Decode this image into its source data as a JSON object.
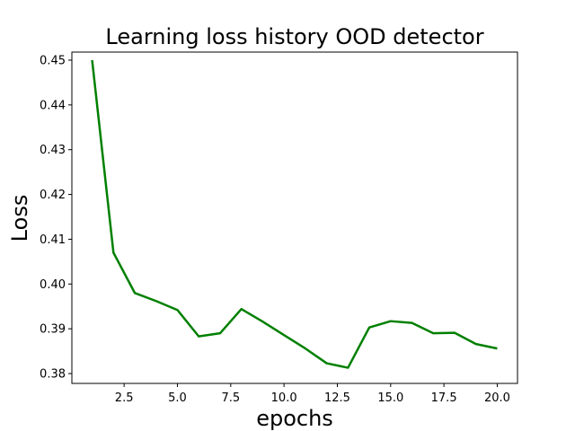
{
  "chart_data": {
    "type": "line",
    "title": "Learning loss history OOD detector",
    "xlabel": "epochs",
    "ylabel": "Loss",
    "xlim": [
      0.05,
      20.95
    ],
    "ylim": [
      0.3778,
      0.4518
    ],
    "grid": false,
    "x_ticks": [
      2.5,
      5.0,
      7.5,
      10.0,
      12.5,
      15.0,
      17.5,
      20.0
    ],
    "x_tick_labels": [
      "2.5",
      "5.0",
      "7.5",
      "10.0",
      "12.5",
      "15.0",
      "17.5",
      "20.0"
    ],
    "y_ticks": [
      0.38,
      0.39,
      0.4,
      0.41,
      0.42,
      0.43,
      0.44,
      0.45
    ],
    "y_tick_labels": [
      "0.38",
      "0.39",
      "0.40",
      "0.41",
      "0.42",
      "0.43",
      "0.44",
      "0.45"
    ],
    "series": [
      {
        "color": "#008000",
        "x": [
          1,
          2,
          3,
          4,
          5,
          6,
          7,
          8,
          9,
          10,
          11,
          12,
          13,
          14,
          15,
          16,
          17,
          18,
          19,
          20
        ],
        "y": [
          0.45,
          0.407,
          0.398,
          0.3962,
          0.3942,
          0.3883,
          0.389,
          0.3944,
          0.3916,
          0.3886,
          0.3856,
          0.3823,
          0.3813,
          0.3903,
          0.3917,
          0.3913,
          0.389,
          0.3891,
          0.3866,
          0.3856
        ]
      }
    ]
  }
}
